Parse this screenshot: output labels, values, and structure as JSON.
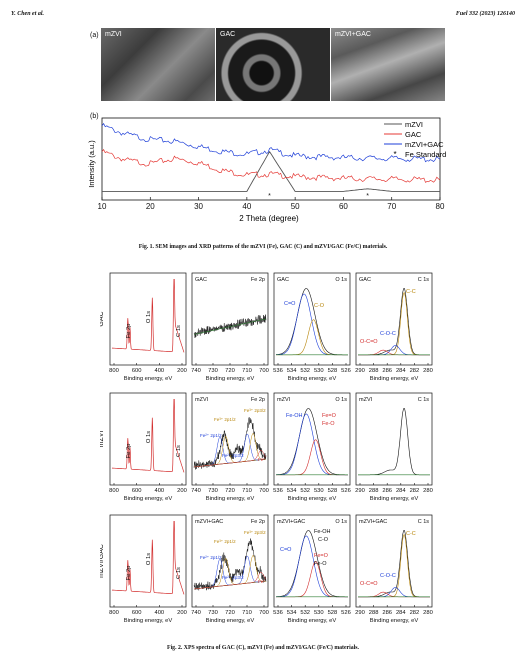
{
  "header": {
    "left": "Y. Chen et al.",
    "right": "Fuel 332 (2023) 126140"
  },
  "fig1": {
    "panel_a_label": "(a)",
    "panel_b_label": "(b)",
    "sem_labels": [
      "mZVI",
      "GAC",
      "mZVI+GAC"
    ],
    "caption": "Fig. 1. SEM images and XRD patterns of the mZVI (Fe), GAC (C) and mZVI/GAC (Fe/C) materials."
  },
  "fig2": {
    "caption": "Fig. 2. XPS spectra of GAC (C), mZVI (Fe) and mZVI/GAC (Fe/C) materials.",
    "row_labels": [
      "GAC",
      "mZVI",
      "mZVI/GAC"
    ],
    "survey_peaks": [
      "Fe 2p",
      "O 1s",
      "C 1s"
    ],
    "xlabel": "Binding energy, eV",
    "panel_titles": {
      "GAC": [
        "GAC",
        "Fe 2p",
        "GAC",
        "O 1s",
        "GAC",
        "C 1s"
      ],
      "mZVI": [
        "mZVI",
        "Fe 2p",
        "mZVI",
        "O 1s",
        "mZVI",
        "C 1s"
      ],
      "mZVI+GAC": [
        "mZVI+GAC",
        "Fe 2p",
        "mZVI+GAC",
        "O 1s",
        "mZVI+GAC",
        "C 1s"
      ]
    },
    "peak_labels": {
      "gac_o1s": [
        "C=O",
        "C-O"
      ],
      "gac_c1s": [
        "C-C",
        "C-O-C",
        "O-C=O"
      ],
      "mzvi_fe2p": [
        "Fe³⁺ 2p1/2",
        "Fe²⁺ 2p1/2",
        "Fe³⁺ 2p3/2",
        "Fe²⁺ 2p3/2",
        "Fe⁰"
      ],
      "mzvi_o1s": [
        "Fe-OH",
        "Fe=O",
        "Fe-O"
      ],
      "fegac_fe2p": [
        "Fe³⁺ 2p1/2",
        "Fe²⁺ 2p1/2",
        "Fe³⁺ 2p3/2",
        "Fe²⁺ 2p3/2",
        "Fe⁰"
      ],
      "fegac_o1s": [
        "C=O",
        "Fe-OH",
        "C-O",
        "Fe=O",
        "Fe-O"
      ],
      "fegac_c1s": [
        "C-C",
        "C-O-C",
        "O-C=O"
      ]
    },
    "axes": {
      "survey": [
        "800",
        "600",
        "400",
        "200"
      ],
      "fe2p": [
        "740",
        "730",
        "720",
        "710",
        "700"
      ],
      "o1s": [
        "536",
        "534",
        "532",
        "530",
        "528",
        "526"
      ],
      "c1s": [
        "290",
        "288",
        "286",
        "284",
        "282",
        "280"
      ]
    }
  },
  "chart_data": [
    {
      "type": "line",
      "title": "",
      "xlabel": "2 Theta (degree)",
      "ylabel": "Intensity (a.u.)",
      "xlim": [
        10,
        80
      ],
      "xticks": [
        10,
        20,
        30,
        40,
        50,
        60,
        70,
        80
      ],
      "grid": false,
      "legend_position": "top-right",
      "series": [
        {
          "name": "mZVI",
          "color": "#555555",
          "x": [
            10,
            20,
            30,
            40,
            44.7,
            50,
            60,
            65,
            70,
            80
          ],
          "y": [
            1.0,
            1.0,
            1.0,
            1.0,
            5.6,
            1.0,
            1.0,
            1.3,
            1.0,
            1.0
          ]
        },
        {
          "name": "GAC",
          "color": "#e53935",
          "x": [
            10,
            15,
            20,
            25,
            30,
            35,
            40,
            44.7,
            50,
            60,
            70,
            80
          ],
          "y": [
            5.6,
            4.6,
            4.2,
            4.8,
            4.3,
            3.4,
            2.9,
            3.0,
            2.7,
            2.5,
            2.4,
            2.3
          ]
        },
        {
          "name": "mZVI+GAC",
          "color": "#1e3fd8",
          "x": [
            10,
            15,
            20,
            25,
            30,
            35,
            40,
            44.7,
            50,
            60,
            70,
            80
          ],
          "y": [
            8.6,
            7.6,
            7.0,
            6.8,
            6.2,
            5.6,
            5.3,
            5.8,
            5.1,
            4.9,
            4.8,
            4.7
          ]
        }
      ],
      "annotations": [
        {
          "name": "Fe Standard",
          "marker": "*",
          "x": [
            44.7,
            65
          ]
        }
      ]
    }
  ]
}
